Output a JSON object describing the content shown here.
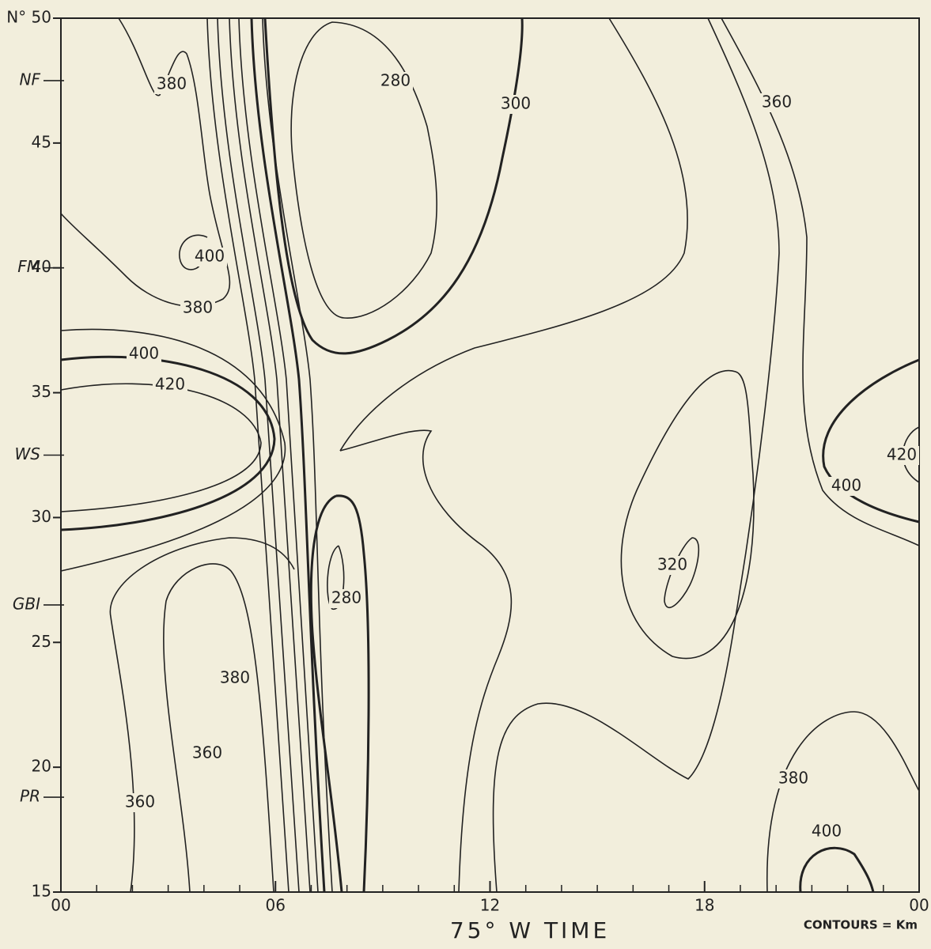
{
  "chart_data": {
    "type": "contour",
    "xlabel": "75° W TIME",
    "note": "CONTOURS = Km",
    "xlim": [
      0,
      24
    ],
    "xticks": [
      {
        "value": 0,
        "label": "00"
      },
      {
        "value": 6,
        "label": "06"
      },
      12,
      18,
      {
        "value": 24,
        "label": "00"
      }
    ],
    "ylim": [
      15,
      50
    ],
    "yticks": [
      15,
      20,
      25,
      30,
      35,
      40,
      45,
      {
        "value": 50,
        "label": "N° 50"
      }
    ],
    "stations": [
      "NF",
      "FM",
      "WS",
      "GBI",
      "PR"
    ],
    "station_lat": [
      47.5,
      40,
      32.5,
      26.5,
      18.8
    ],
    "contour_labels": [
      380,
      280,
      300,
      360,
      400,
      380,
      400,
      420,
      420,
      400,
      320,
      280,
      380,
      360,
      360,
      380,
      400
    ]
  }
}
